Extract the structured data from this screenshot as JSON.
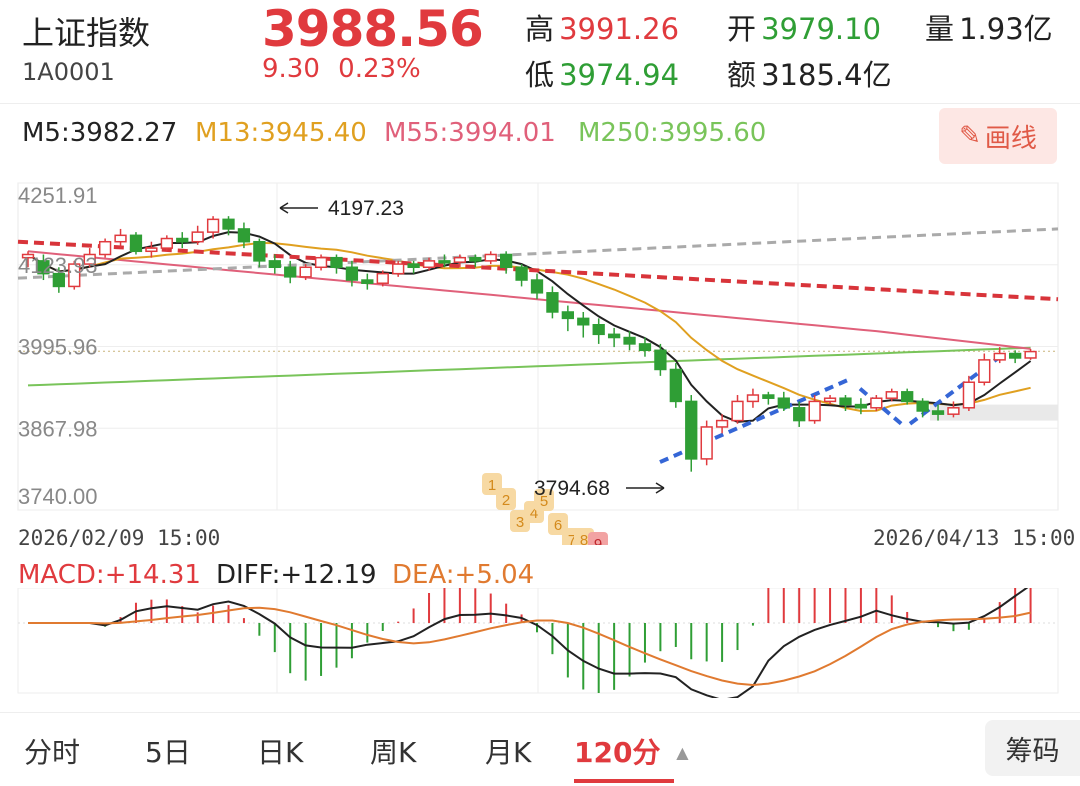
{
  "header": {
    "name": "上证指数",
    "code": "1A0001",
    "price": "3988.56",
    "change": "9.30",
    "change_pct": "0.23%",
    "high_label": "高",
    "high": "3991.26",
    "low_label": "低",
    "low": "3974.94",
    "open_label": "开",
    "open": "3979.10",
    "amount_label": "额",
    "amount": "3185.4亿",
    "volume_label": "量",
    "volume": "1.93亿"
  },
  "ma_legend": {
    "m5": "M5:3982.27",
    "m13": "M13:3945.40",
    "m55": "M55:3994.01",
    "m250": "M250:3995.60"
  },
  "draw_button": {
    "icon": "pencil-icon",
    "label": "画线"
  },
  "chart_data": {
    "type": "candlestick",
    "y_ticks": [
      "4251.91",
      "4123.93",
      "3995.96",
      "3867.98",
      "3740.00"
    ],
    "ylim": [
      3740.0,
      4251.91
    ],
    "x_start_label": "2026/02/09 15:00",
    "x_end_label": "2026/04/13 15:00",
    "annotations": {
      "high": "4197.23",
      "low": "3794.68"
    },
    "sequence_labels": [
      "1",
      "2",
      "3",
      "4",
      "5",
      "6",
      "7",
      "8",
      "9"
    ],
    "candles": [
      [
        4135,
        4140,
        4120,
        4145
      ],
      [
        4130,
        4110,
        4100,
        4140
      ],
      [
        4110,
        4090,
        4080,
        4120
      ],
      [
        4090,
        4125,
        4085,
        4130
      ],
      [
        4125,
        4140,
        4120,
        4150
      ],
      [
        4140,
        4160,
        4135,
        4165
      ],
      [
        4160,
        4170,
        4150,
        4180
      ],
      [
        4170,
        4145,
        4140,
        4175
      ],
      [
        4145,
        4150,
        4135,
        4160
      ],
      [
        4150,
        4165,
        4145,
        4170
      ],
      [
        4165,
        4160,
        4150,
        4175
      ],
      [
        4160,
        4175,
        4155,
        4185
      ],
      [
        4175,
        4195,
        4165,
        4200
      ],
      [
        4195,
        4180,
        4170,
        4200
      ],
      [
        4180,
        4160,
        4150,
        4190
      ],
      [
        4160,
        4130,
        4120,
        4165
      ],
      [
        4130,
        4120,
        4110,
        4140
      ],
      [
        4120,
        4105,
        4095,
        4130
      ],
      [
        4105,
        4120,
        4100,
        4125
      ],
      [
        4120,
        4135,
        4115,
        4140
      ],
      [
        4135,
        4120,
        4110,
        4140
      ],
      [
        4120,
        4100,
        4090,
        4130
      ],
      [
        4100,
        4095,
        4085,
        4110
      ],
      [
        4095,
        4110,
        4090,
        4115
      ],
      [
        4110,
        4125,
        4105,
        4130
      ],
      [
        4125,
        4120,
        4110,
        4130
      ],
      [
        4120,
        4130,
        4115,
        4135
      ],
      [
        4130,
        4128,
        4120,
        4140
      ],
      [
        4128,
        4135,
        4120,
        4140
      ],
      [
        4135,
        4130,
        4120,
        4140
      ],
      [
        4130,
        4140,
        4125,
        4145
      ],
      [
        4140,
        4120,
        4110,
        4145
      ],
      [
        4120,
        4100,
        4090,
        4125
      ],
      [
        4100,
        4080,
        4070,
        4110
      ],
      [
        4080,
        4050,
        4040,
        4090
      ],
      [
        4050,
        4040,
        4020,
        4060
      ],
      [
        4040,
        4030,
        4010,
        4050
      ],
      [
        4030,
        4015,
        4000,
        4040
      ],
      [
        4015,
        4010,
        3995,
        4025
      ],
      [
        4010,
        4000,
        3990,
        4020
      ],
      [
        4000,
        3990,
        3980,
        4010
      ],
      [
        3990,
        3960,
        3950,
        4000
      ],
      [
        3960,
        3910,
        3900,
        3970
      ],
      [
        3910,
        3820,
        3800,
        3920
      ],
      [
        3820,
        3870,
        3810,
        3880
      ],
      [
        3870,
        3880,
        3860,
        3890
      ],
      [
        3880,
        3910,
        3875,
        3920
      ],
      [
        3910,
        3920,
        3900,
        3930
      ],
      [
        3920,
        3915,
        3905,
        3925
      ],
      [
        3915,
        3900,
        3895,
        3925
      ],
      [
        3900,
        3880,
        3870,
        3910
      ],
      [
        3880,
        3910,
        3875,
        3920
      ],
      [
        3910,
        3915,
        3905,
        3920
      ],
      [
        3915,
        3905,
        3895,
        3920
      ],
      [
        3905,
        3900,
        3890,
        3915
      ],
      [
        3900,
        3915,
        3895,
        3920
      ],
      [
        3915,
        3925,
        3910,
        3930
      ],
      [
        3925,
        3910,
        3905,
        3930
      ],
      [
        3910,
        3895,
        3885,
        3915
      ],
      [
        3895,
        3890,
        3880,
        3905
      ],
      [
        3890,
        3900,
        3885,
        3910
      ],
      [
        3900,
        3940,
        3895,
        3950
      ],
      [
        3940,
        3975,
        3935,
        3985
      ],
      [
        3975,
        3985,
        3970,
        3995
      ],
      [
        3985,
        3978,
        3970,
        3990
      ],
      [
        3978,
        3988,
        3975,
        3992
      ]
    ],
    "macd": {
      "legend": {
        "macd": "MACD:+14.31",
        "diff": "DIFF:+12.19",
        "dea": "DEA:+5.04"
      }
    }
  },
  "tabs": [
    {
      "label": "分时",
      "active": false
    },
    {
      "label": "5日",
      "active": false
    },
    {
      "label": "日K",
      "active": false
    },
    {
      "label": "周K",
      "active": false
    },
    {
      "label": "月K",
      "active": false
    },
    {
      "label": "120分",
      "active": true
    }
  ],
  "chip_button": "筹码",
  "colors": {
    "up": "#e03a3e",
    "down": "#2f9e35",
    "m5": "#222222",
    "m13": "#e0a020",
    "m55": "#e0607a",
    "m250": "#79c45a"
  }
}
